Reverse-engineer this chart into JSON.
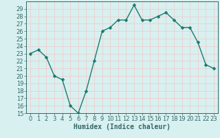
{
  "x": [
    0,
    1,
    2,
    3,
    4,
    5,
    6,
    7,
    8,
    9,
    10,
    11,
    12,
    13,
    14,
    15,
    16,
    17,
    18,
    19,
    20,
    21,
    22,
    23
  ],
  "y": [
    23,
    23.5,
    22.5,
    20,
    19.5,
    16,
    15,
    18,
    22,
    26,
    26.5,
    27.5,
    27.5,
    29.5,
    27.5,
    27.5,
    28,
    28.5,
    27.5,
    26.5,
    26.5,
    24.5,
    21.5,
    21
  ],
  "line_color": "#1a7a6e",
  "marker_color": "#1a7a6e",
  "bg_color": "#d8f0f0",
  "plot_bg_color": "#d8f0f0",
  "grid_color": "#f0c8c8",
  "xlabel": "Humidex (Indice chaleur)",
  "xlim": [
    -0.5,
    23.5
  ],
  "ylim": [
    15,
    30
  ],
  "yticks": [
    15,
    16,
    17,
    18,
    19,
    20,
    21,
    22,
    23,
    24,
    25,
    26,
    27,
    28,
    29
  ],
  "xticks": [
    0,
    1,
    2,
    3,
    4,
    5,
    6,
    7,
    8,
    9,
    10,
    11,
    12,
    13,
    14,
    15,
    16,
    17,
    18,
    19,
    20,
    21,
    22,
    23
  ],
  "tick_color": "#336666",
  "label_color": "#336666",
  "font_size": 6,
  "xlabel_fontsize": 7,
  "marker_size": 2.5,
  "line_width": 1.0
}
